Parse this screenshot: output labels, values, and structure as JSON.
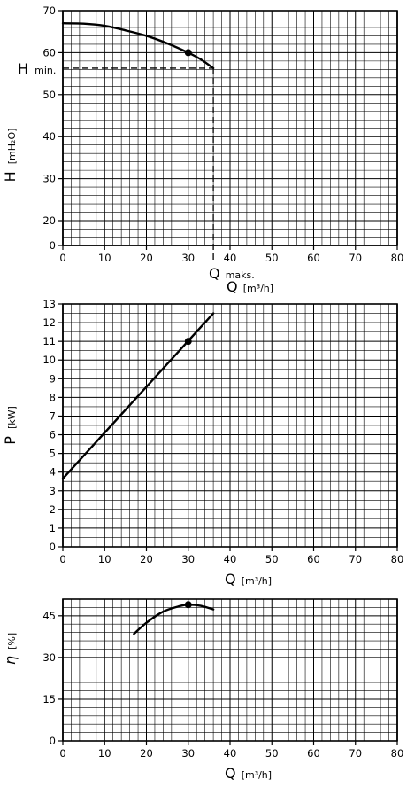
{
  "chart_data": [
    {
      "type": "line",
      "x_tick_labels": [
        "0",
        "10",
        "20",
        "30",
        "40",
        "50",
        "60",
        "70",
        "80"
      ],
      "y_tick_labels": [
        {
          "value": 0,
          "label": "0"
        },
        {
          "value": 20,
          "label": "20"
        },
        {
          "value": 30,
          "label": "30"
        },
        {
          "value": 40,
          "label": "40"
        },
        {
          "value": 50,
          "label": "50"
        },
        {
          "value": 60,
          "label": "60"
        },
        {
          "value": 70,
          "label": "70"
        }
      ],
      "xlim": [
        0,
        80
      ],
      "y_axis_note": "broken axis: 0 at bottom, then 20 to 70 (10 per 10.24 grid cells)",
      "grid": true,
      "ylabel": {
        "main": "H",
        "unit": "[mH₂O]"
      },
      "xlabel": {
        "main": "Q",
        "sub": "maks.",
        "main2": "Q",
        "unit": "[m³/h]"
      },
      "annotation": {
        "main": "H",
        "sub": "min."
      },
      "series": [
        {
          "x": [
            0,
            5,
            10,
            15,
            20,
            25,
            30,
            33,
            36
          ],
          "y": [
            67,
            66.9,
            66.4,
            65.3,
            64,
            62.2,
            60,
            58.4,
            56.3
          ],
          "marker": {
            "x": 30,
            "y": 60
          }
        }
      ],
      "reference_lines": {
        "h_min": 56.3,
        "q_max": 36
      }
    },
    {
      "type": "line",
      "x_tick_labels": [
        "0",
        "10",
        "20",
        "30",
        "40",
        "50",
        "60",
        "70",
        "80"
      ],
      "y_tick_labels": [
        {
          "value": 0,
          "label": "0"
        },
        {
          "value": 1,
          "label": "1"
        },
        {
          "value": 2,
          "label": "2"
        },
        {
          "value": 3,
          "label": "3"
        },
        {
          "value": 4,
          "label": "4"
        },
        {
          "value": 5,
          "label": "5"
        },
        {
          "value": 6,
          "label": "6"
        },
        {
          "value": 7,
          "label": "7"
        },
        {
          "value": 8,
          "label": "8"
        },
        {
          "value": 9,
          "label": "9"
        },
        {
          "value": 10,
          "label": "10"
        },
        {
          "value": 11,
          "label": "11"
        },
        {
          "value": 12,
          "label": "12"
        },
        {
          "value": 13,
          "label": "13"
        }
      ],
      "xlim": [
        0,
        80
      ],
      "ylim": [
        0,
        13
      ],
      "grid": true,
      "ylabel": {
        "main": "P",
        "unit": "[kW]"
      },
      "xlabel": {
        "main": "Q",
        "unit": "[m³/h]"
      },
      "series": [
        {
          "x": [
            0,
            36
          ],
          "y": [
            3.65,
            12.5
          ],
          "marker": {
            "x": 30,
            "y": 11
          }
        }
      ]
    },
    {
      "type": "line",
      "x_tick_labels": [
        "0",
        "10",
        "20",
        "30",
        "40",
        "50",
        "60",
        "70",
        "80"
      ],
      "y_tick_labels": [
        {
          "value": 0,
          "label": "0"
        },
        {
          "value": 15,
          "label": "15"
        },
        {
          "value": 30,
          "label": "30"
        },
        {
          "value": 45,
          "label": "45"
        }
      ],
      "xlim": [
        0,
        80
      ],
      "ylim": [
        0,
        51
      ],
      "grid": true,
      "ylabel": {
        "main": "η",
        "unit": "[%]"
      },
      "xlabel": {
        "main": "Q",
        "unit": "[m³/h]"
      },
      "series": [
        {
          "x": [
            17,
            20,
            24,
            28,
            30,
            33,
            36
          ],
          "y": [
            38.5,
            42.5,
            46.5,
            48.5,
            49,
            48.6,
            47.3
          ],
          "marker": {
            "x": 30,
            "y": 49
          }
        }
      ]
    }
  ]
}
